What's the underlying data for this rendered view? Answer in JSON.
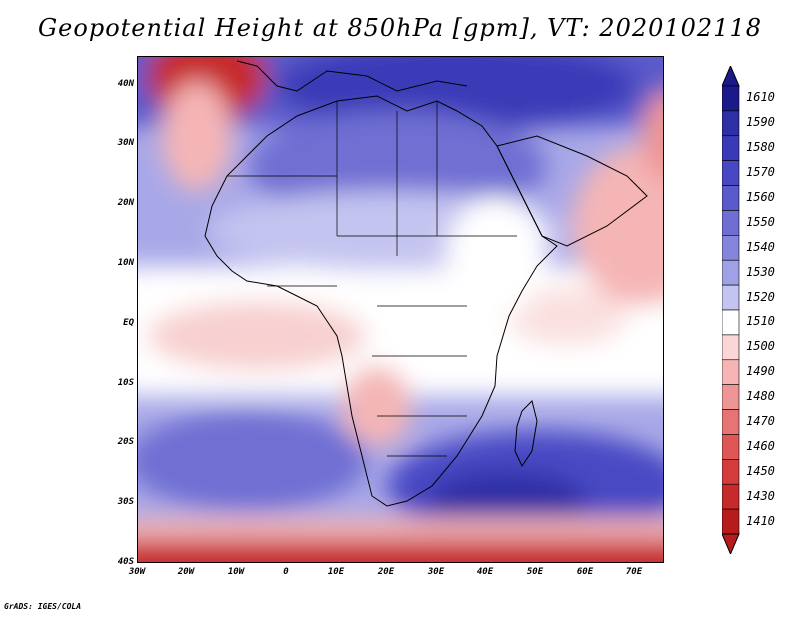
{
  "title": "Geopotential Height at 850hPa [gpm], VT: 2020102118",
  "footer": "GrADS: IGES/COLA",
  "lat_labels": [
    "40N",
    "30N",
    "20N",
    "10N",
    "EQ",
    "10S",
    "20S",
    "30S",
    "40S"
  ],
  "lon_labels": [
    "30W",
    "20W",
    "10W",
    "0",
    "10E",
    "20E",
    "30E",
    "40E",
    "50E",
    "60E",
    "70E"
  ],
  "colorbar": {
    "levels": [
      "1610",
      "1590",
      "1580",
      "1570",
      "1560",
      "1550",
      "1540",
      "1530",
      "1520",
      "1510",
      "1500",
      "1490",
      "1480",
      "1470",
      "1460",
      "1450",
      "1430",
      "1410"
    ],
    "colors": [
      "#1a1a8a",
      "#2e2ea6",
      "#3a3ab8",
      "#4848c4",
      "#5a5acb",
      "#6f6fd3",
      "#8585dc",
      "#a0a0e6",
      "#c4c4f0",
      "#ffffff",
      "#fad6d6",
      "#f5b5b5",
      "#ee9595",
      "#e67474",
      "#de5656",
      "#d43c3c",
      "#c62a2a",
      "#b71c1c"
    ]
  }
}
